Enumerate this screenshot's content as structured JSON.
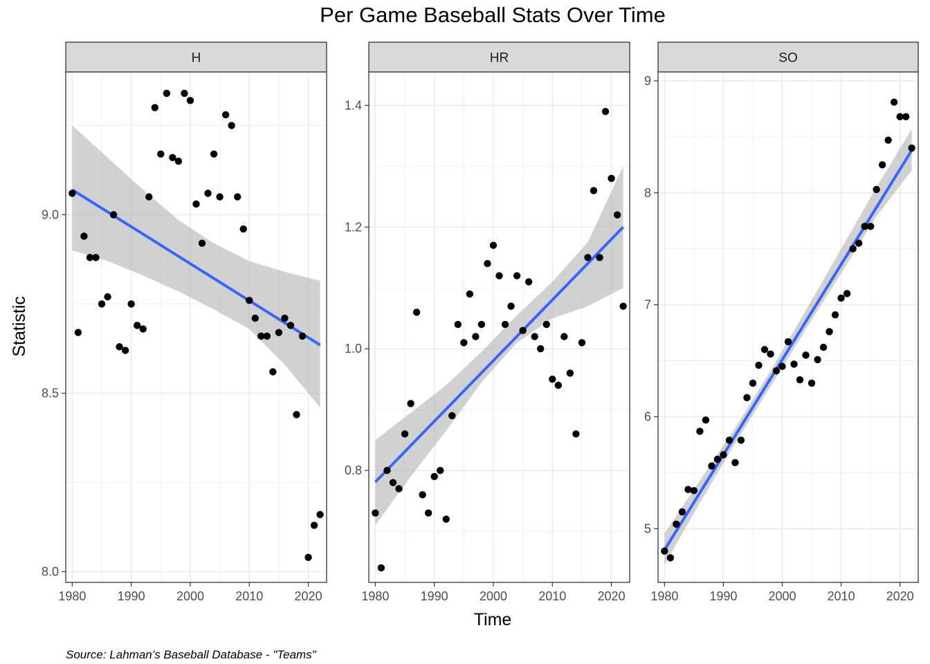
{
  "title": "Per Game Baseball Stats Over Time",
  "caption": "Source: Lahman’s Baseball Database - \"Teams\"",
  "colors": {
    "point": "#000000",
    "fit": "#3366ff",
    "band": "#b3b3b3",
    "strip": "#d9d9d9",
    "grid": "#ebebeb"
  },
  "chart_data": {
    "type": "scatter",
    "xlabel": "Time",
    "ylabel": "Statistic",
    "grid": true,
    "legend": "none",
    "panels": [
      {
        "name": "H",
        "xlim": [
          1978.9,
          2023.1
        ],
        "ylim": [
          7.97,
          9.4
        ],
        "xticks": [
          1980,
          1990,
          2000,
          2010,
          2020
        ],
        "yticks": [
          8.0,
          8.5,
          9.0
        ],
        "x": [
          1980,
          1981,
          1982,
          1983,
          1984,
          1985,
          1986,
          1987,
          1988,
          1989,
          1990,
          1991,
          1992,
          1993,
          1994,
          1995,
          1996,
          1997,
          1998,
          1999,
          2000,
          2001,
          2002,
          2003,
          2004,
          2005,
          2006,
          2007,
          2008,
          2009,
          2010,
          2011,
          2012,
          2013,
          2014,
          2015,
          2016,
          2017,
          2018,
          2019,
          2020,
          2021,
          2022
        ],
        "y": [
          9.06,
          8.67,
          8.94,
          8.88,
          8.88,
          8.75,
          8.77,
          9.0,
          8.63,
          8.62,
          8.75,
          8.69,
          8.68,
          9.05,
          9.3,
          9.17,
          9.34,
          9.16,
          9.15,
          9.34,
          9.32,
          9.03,
          8.92,
          9.06,
          9.17,
          9.05,
          9.28,
          9.25,
          9.05,
          8.96,
          8.76,
          8.71,
          8.66,
          8.66,
          8.56,
          8.67,
          8.71,
          8.69,
          8.44,
          8.66,
          8.04,
          8.13,
          8.16
        ],
        "fit": {
          "x": [
            1980,
            2022
          ],
          "y": [
            9.07,
            8.635
          ]
        },
        "band": {
          "x": [
            1980,
            1986,
            1992,
            1998,
            2004,
            2010,
            2016,
            2022
          ],
          "lower": [
            8.9,
            8.87,
            8.83,
            8.785,
            8.735,
            8.68,
            8.58,
            8.46
          ],
          "upper": [
            9.25,
            9.16,
            9.07,
            8.985,
            8.92,
            8.87,
            8.84,
            8.815
          ]
        }
      },
      {
        "name": "HR",
        "xlim": [
          1978.9,
          2023.1
        ],
        "ylim": [
          0.616,
          1.455
        ],
        "xticks": [
          1980,
          1990,
          2000,
          2010,
          2020
        ],
        "yticks": [
          0.8,
          1.0,
          1.2,
          1.4
        ],
        "x": [
          1980,
          1981,
          1982,
          1983,
          1984,
          1985,
          1986,
          1987,
          1988,
          1989,
          1990,
          1991,
          1992,
          1993,
          1994,
          1995,
          1996,
          1997,
          1998,
          1999,
          2000,
          2001,
          2002,
          2003,
          2004,
          2005,
          2006,
          2007,
          2008,
          2009,
          2010,
          2011,
          2012,
          2013,
          2014,
          2015,
          2016,
          2017,
          2018,
          2019,
          2020,
          2021,
          2022
        ],
        "y": [
          0.73,
          0.64,
          0.8,
          0.78,
          0.77,
          0.86,
          0.91,
          1.06,
          0.76,
          0.73,
          0.79,
          0.8,
          0.72,
          0.89,
          1.04,
          1.01,
          1.09,
          1.02,
          1.04,
          1.14,
          1.17,
          1.12,
          1.04,
          1.07,
          1.12,
          1.03,
          1.11,
          1.02,
          1.0,
          1.04,
          0.95,
          0.94,
          1.02,
          0.96,
          0.86,
          1.01,
          1.15,
          1.26,
          1.15,
          1.39,
          1.28,
          1.22,
          1.07
        ],
        "fit": {
          "x": [
            1980,
            2022
          ],
          "y": [
            0.781,
            1.2
          ]
        },
        "band": {
          "x": [
            1980,
            1986,
            1992,
            1998,
            2004,
            2010,
            2016,
            2022
          ],
          "lower": [
            0.71,
            0.79,
            0.865,
            0.945,
            1.01,
            1.05,
            1.07,
            1.1
          ],
          "upper": [
            0.85,
            0.895,
            0.94,
            0.995,
            1.055,
            1.11,
            1.175,
            1.3
          ]
        }
      },
      {
        "name": "SO",
        "xlim": [
          1978.9,
          2023.1
        ],
        "ylim": [
          4.52,
          9.08
        ],
        "xticks": [
          1980,
          1990,
          2000,
          2010,
          2020
        ],
        "yticks": [
          5,
          6,
          7,
          8,
          9
        ],
        "x": [
          1980,
          1981,
          1982,
          1983,
          1984,
          1985,
          1986,
          1987,
          1988,
          1989,
          1990,
          1991,
          1992,
          1993,
          1994,
          1995,
          1996,
          1997,
          1998,
          1999,
          2000,
          2001,
          2002,
          2003,
          2004,
          2005,
          2006,
          2007,
          2008,
          2009,
          2010,
          2011,
          2012,
          2013,
          2014,
          2015,
          2016,
          2017,
          2018,
          2019,
          2020,
          2021,
          2022
        ],
        "y": [
          4.8,
          4.74,
          5.04,
          5.15,
          5.35,
          5.34,
          5.87,
          5.97,
          5.56,
          5.62,
          5.66,
          5.79,
          5.59,
          5.79,
          6.17,
          6.3,
          6.46,
          6.6,
          6.56,
          6.41,
          6.45,
          6.67,
          6.47,
          6.33,
          6.55,
          6.3,
          6.51,
          6.62,
          6.76,
          6.91,
          7.06,
          7.1,
          7.5,
          7.55,
          7.7,
          7.7,
          8.03,
          8.25,
          8.47,
          8.81,
          8.68,
          8.68,
          8.4
        ],
        "fit": {
          "x": [
            1980,
            2022
          ],
          "y": [
            4.81,
            8.38
          ]
        },
        "band": {
          "x": [
            1980,
            1986,
            1992,
            1998,
            2004,
            2010,
            2016,
            2022
          ],
          "lower": [
            4.68,
            5.23,
            5.76,
            6.27,
            6.78,
            7.28,
            7.79,
            8.2
          ],
          "upper": [
            4.96,
            5.43,
            5.9,
            6.41,
            6.95,
            7.5,
            8.05,
            8.57
          ]
        }
      }
    ]
  }
}
